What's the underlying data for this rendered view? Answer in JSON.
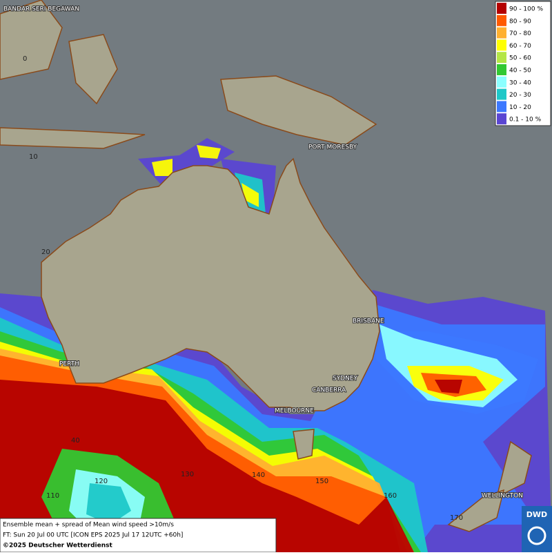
{
  "map": {
    "cities": [
      "BANDAR SERI BEGAWAN",
      "PORT MORESBY",
      "BRISBANE",
      "PERTH",
      "SYDNEY",
      "CANBERRA",
      "MELBOURNE",
      "WELLINGTON"
    ],
    "grid_labels": [
      "0",
      "10",
      "20",
      "40",
      "110",
      "120",
      "130",
      "140",
      "150",
      "160",
      "170"
    ]
  },
  "legend": {
    "items": [
      {
        "label": "90 - 100 %",
        "color": "#b40000"
      },
      {
        "label": "80 - 90",
        "color": "#ff5a00"
      },
      {
        "label": "70 - 80",
        "color": "#ffb030"
      },
      {
        "label": "60 - 70",
        "color": "#ffff00"
      },
      {
        "label": "50 - 60",
        "color": "#b4e646"
      },
      {
        "label": "40 - 50",
        "color": "#32c832"
      },
      {
        "label": "30 - 40",
        "color": "#8cffff"
      },
      {
        "label": "20 - 30",
        "color": "#1ec8c8"
      },
      {
        "label": "10 - 20",
        "color": "#3c78ff"
      },
      {
        "label": "0.1 - 10 %",
        "color": "#5a46d2"
      }
    ]
  },
  "footer": {
    "lines": [
      "Ensemble mean + spread of Mean wind speed >10m/s",
      "FT: Sun 20 Jul 00 UTC [ICON EPS 2025 Jul 17 12UTC +60h]",
      "©2025 Deutscher Wetterdienst"
    ]
  },
  "logo": "DWD"
}
